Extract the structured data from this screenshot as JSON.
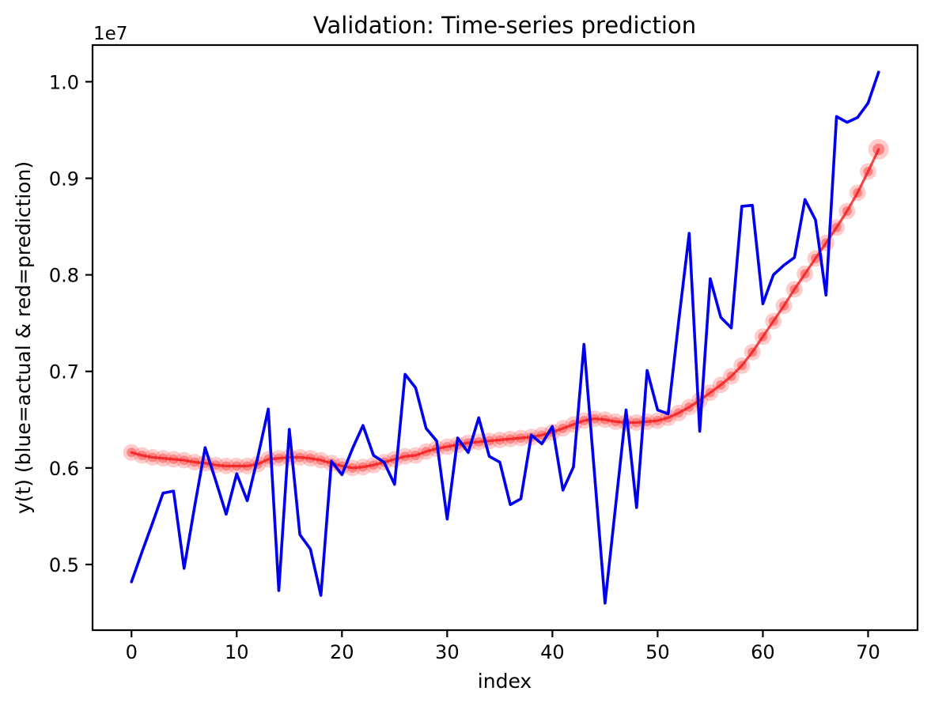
{
  "figure": {
    "title": "Validation: Time-series prediction",
    "xlabel": "index",
    "ylabel": "y(t) (blue=actual & red=prediction)",
    "offset_text": "1e7"
  },
  "chart_data": {
    "type": "line",
    "title": "Validation: Time-series prediction",
    "xlabel": "index",
    "ylabel": "y(t) (blue=actual & red=prediction)",
    "grid": false,
    "legend": "none (colors explained in ylabel)",
    "xlim": [
      -3.7,
      74.7
    ],
    "ylim": [
      4320000,
      10380000
    ],
    "x_ticks": [
      0,
      10,
      20,
      30,
      40,
      50,
      60,
      70
    ],
    "y_ticks": {
      "values": [
        5000000,
        6000000,
        7000000,
        8000000,
        9000000,
        10000000
      ],
      "labels": [
        "0.5",
        "0.6",
        "0.7",
        "0.8",
        "0.9",
        "1.0"
      ],
      "offset_text": "1e7"
    },
    "x": [
      0,
      1,
      2,
      3,
      4,
      5,
      6,
      7,
      8,
      9,
      10,
      11,
      12,
      13,
      14,
      15,
      16,
      17,
      18,
      19,
      20,
      21,
      22,
      23,
      24,
      25,
      26,
      27,
      28,
      29,
      30,
      31,
      32,
      33,
      34,
      35,
      36,
      37,
      38,
      39,
      40,
      41,
      42,
      43,
      44,
      45,
      46,
      47,
      48,
      49,
      50,
      51,
      52,
      53,
      54,
      55,
      56,
      57,
      58,
      59,
      60,
      61,
      62,
      63,
      64,
      65,
      66,
      67,
      68,
      69,
      70,
      71
    ],
    "series": [
      {
        "name": "actual",
        "color": "#0000ee",
        "style": "solid line, no markers",
        "values": [
          4820000,
          5130000,
          5430000,
          5740000,
          5760000,
          4960000,
          5600000,
          6210000,
          5870000,
          5520000,
          5940000,
          5660000,
          6110000,
          6610000,
          4730000,
          6400000,
          5310000,
          5160000,
          4680000,
          6070000,
          5930000,
          6200000,
          6440000,
          6130000,
          6060000,
          5830000,
          6970000,
          6830000,
          6410000,
          6280000,
          5470000,
          6310000,
          6160000,
          6520000,
          6120000,
          6060000,
          5620000,
          5680000,
          6340000,
          6250000,
          6430000,
          5770000,
          6010000,
          7280000,
          5940000,
          4600000,
          5600000,
          6600000,
          5590000,
          7010000,
          6600000,
          6560000,
          7520000,
          8430000,
          6380000,
          7960000,
          7560000,
          7450000,
          8710000,
          8720000,
          7700000,
          8000000,
          8100000,
          8180000,
          8780000,
          8570000,
          7790000,
          9640000,
          9580000,
          9630000,
          9780000,
          10100000
        ]
      },
      {
        "name": "prediction",
        "color": "#ff0000",
        "style": "semi-transparent red line with large translucent circular markers",
        "values": [
          6160000,
          6130000,
          6110000,
          6100000,
          6090000,
          6080000,
          6060000,
          6050000,
          6030000,
          6020000,
          6020000,
          6020000,
          6040000,
          6090000,
          6100000,
          6110000,
          6110000,
          6100000,
          6080000,
          6050000,
          6020000,
          6000000,
          6010000,
          6030000,
          6060000,
          6090000,
          6120000,
          6130000,
          6170000,
          6200000,
          6220000,
          6240000,
          6260000,
          6270000,
          6280000,
          6290000,
          6300000,
          6310000,
          6320000,
          6340000,
          6370000,
          6410000,
          6450000,
          6490000,
          6510000,
          6500000,
          6480000,
          6470000,
          6470000,
          6480000,
          6490000,
          6520000,
          6570000,
          6630000,
          6700000,
          6780000,
          6860000,
          6950000,
          7060000,
          7200000,
          7360000,
          7520000,
          7680000,
          7850000,
          8010000,
          8170000,
          8330000,
          8490000,
          8660000,
          8850000,
          9070000,
          9300000
        ]
      }
    ]
  },
  "colors": {
    "actual_line": "#0000ee",
    "prediction_line": "#ff0000",
    "axes": "#000000",
    "background": "#ffffff"
  }
}
